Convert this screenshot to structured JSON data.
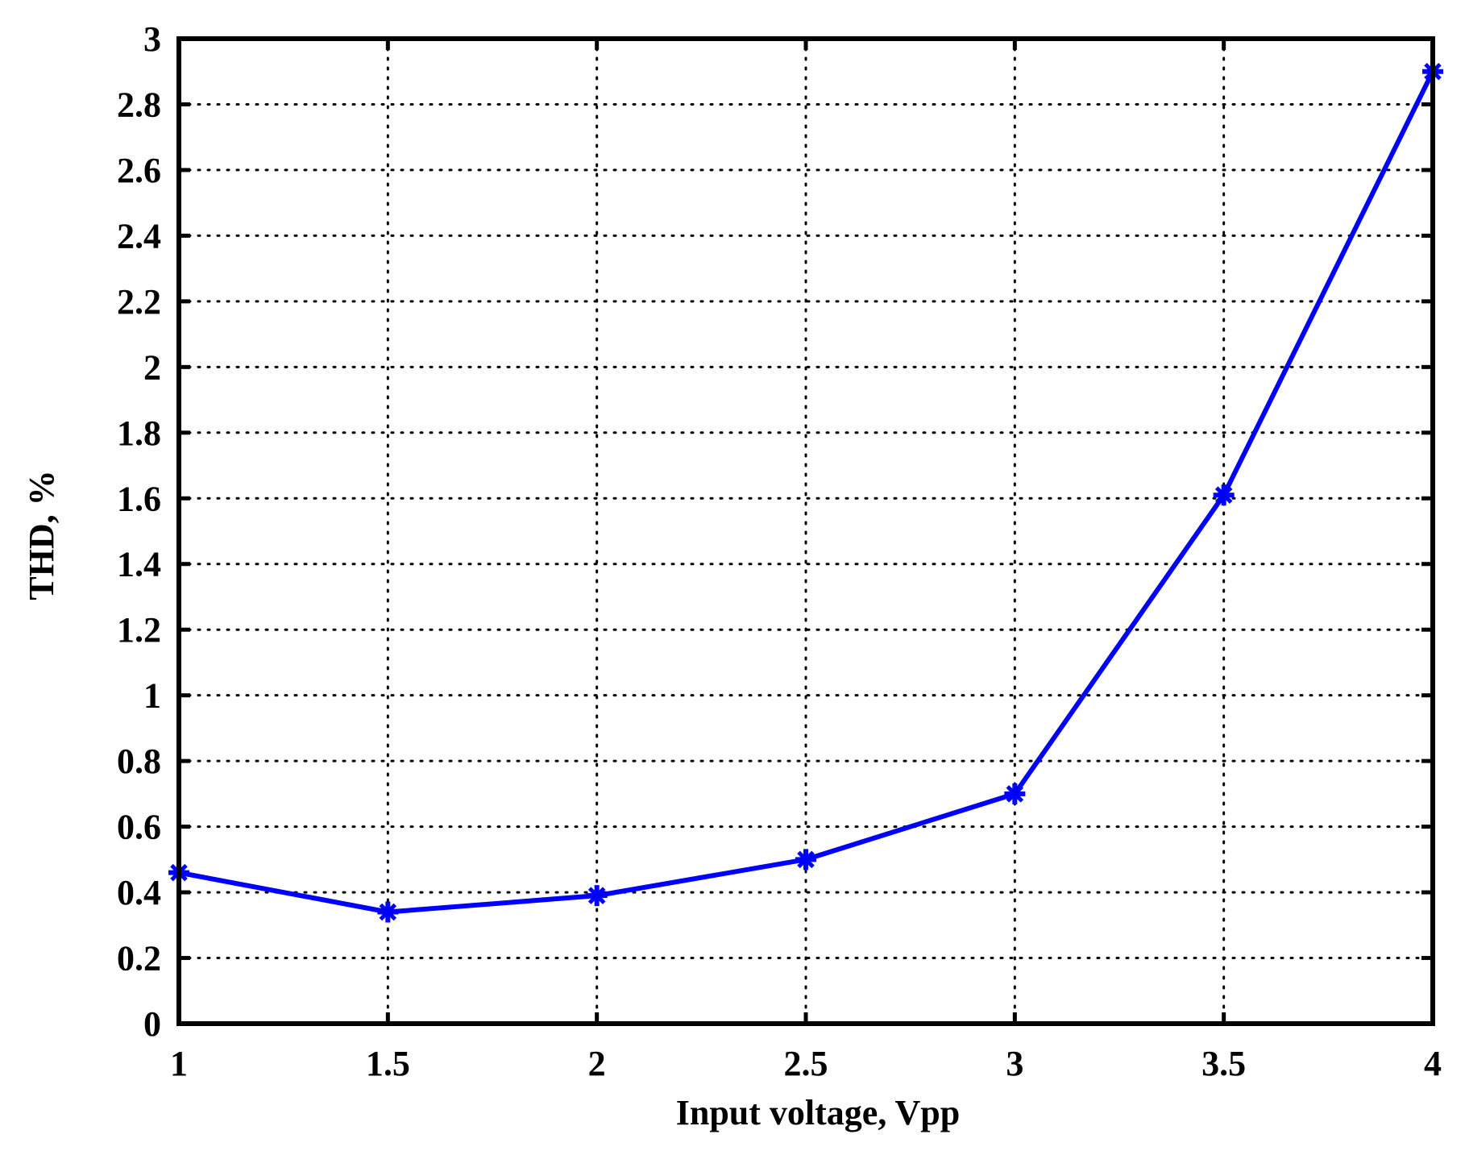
{
  "chart_data": {
    "type": "line",
    "title": "",
    "xlabel": "Input voltage, Vpp",
    "ylabel": "THD, %",
    "xlim": [
      1,
      4
    ],
    "ylim": [
      0,
      3
    ],
    "xticks": [
      "1",
      "1.5",
      "2",
      "2.5",
      "3",
      "3.5",
      "4"
    ],
    "yticks": [
      "0",
      "0.2",
      "0.4",
      "0.6",
      "0.8",
      "1",
      "1.2",
      "1.4",
      "1.6",
      "1.8",
      "2",
      "2.2",
      "2.4",
      "2.6",
      "2.8",
      "3"
    ],
    "grid": true,
    "grid_style": "dotted",
    "series": [
      {
        "color": "#0000ff",
        "marker": "asterisk",
        "x": [
          1,
          1.5,
          2,
          2.5,
          3,
          3.5,
          4
        ],
        "y": [
          0.46,
          0.34,
          0.39,
          0.5,
          0.7,
          1.61,
          2.9
        ]
      }
    ]
  }
}
